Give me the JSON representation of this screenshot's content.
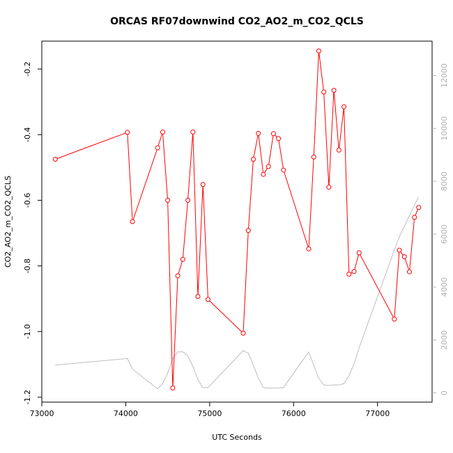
{
  "chart_data": {
    "type": "line",
    "title": "ORCAS RF07downwind CO2_AO2_m_CO2_QCLS",
    "xlabel": "UTC Seconds",
    "ylabel": "CO2_AO2_m_CO2_QCLS",
    "xlim": [
      73000,
      77650
    ],
    "ylim": [
      -1.215,
      -0.115
    ],
    "y2lim": [
      -350,
      13300
    ],
    "x_ticks": [
      73000,
      74000,
      75000,
      76000,
      77000
    ],
    "x_tick_labels": [
      "73000",
      "74000",
      "75000",
      "76000",
      "77000"
    ],
    "y_ticks": [
      -1.2,
      -1.0,
      -0.8,
      -0.6,
      -0.4,
      -0.2
    ],
    "y_tick_labels": [
      "-1.2",
      "-1.0",
      "-0.8",
      "-0.6",
      "-0.4",
      "-0.2"
    ],
    "y2_ticks": [
      0,
      2000,
      4000,
      6000,
      8000,
      10000,
      12000
    ],
    "y2_tick_labels": [
      "0",
      "2000",
      "4000",
      "6000",
      "8000",
      "10000",
      "12000"
    ],
    "series": [
      {
        "color": "#ff0000",
        "style": "line+points",
        "axis": "left",
        "x": [
          73160,
          74020,
          74080,
          74380,
          74440,
          74500,
          74560,
          74620,
          74680,
          74740,
          74800,
          74860,
          74920,
          74980,
          75400,
          75460,
          75520,
          75580,
          75640,
          75700,
          75760,
          75820,
          75880,
          76180,
          76240,
          76300,
          76360,
          76420,
          76480,
          76540,
          76600,
          76660,
          76720,
          76780,
          77200,
          77260,
          77320,
          77380,
          77440,
          77490
        ],
        "y": [
          -0.475,
          -0.393,
          -0.665,
          -0.44,
          -0.392,
          -0.6,
          -1.172,
          -0.83,
          -0.78,
          -0.6,
          -0.392,
          -0.893,
          -0.552,
          -0.902,
          -1.005,
          -0.692,
          -0.475,
          -0.396,
          -0.521,
          -0.497,
          -0.397,
          -0.412,
          -0.508,
          -0.748,
          -0.468,
          -0.145,
          -0.27,
          -0.56,
          -0.265,
          -0.447,
          -0.315,
          -0.825,
          -0.817,
          -0.76,
          -0.962,
          -0.752,
          -0.772,
          -0.818,
          -0.652,
          -0.622
        ]
      },
      {
        "color": "#bebebe",
        "style": "line",
        "axis": "right",
        "x": [
          73160,
          74020,
          74080,
          74380,
          74440,
          74500,
          74560,
          74620,
          74680,
          74740,
          74800,
          74860,
          74920,
          74980,
          75400,
          75460,
          75520,
          75580,
          75640,
          75700,
          75760,
          75820,
          75880,
          76180,
          76240,
          76300,
          76360,
          76420,
          76480,
          76540,
          76600,
          76660,
          76720,
          76780,
          77200,
          77260,
          77320,
          77380,
          77440,
          77490
        ],
        "y": [
          1050,
          1300,
          900,
          150,
          350,
          750,
          1300,
          1550,
          1550,
          1400,
          1000,
          500,
          200,
          200,
          1600,
          1500,
          1050,
          550,
          200,
          180,
          180,
          180,
          200,
          1550,
          1050,
          550,
          300,
          280,
          300,
          300,
          350,
          650,
          1100,
          1700,
          5400,
          5900,
          6300,
          6700,
          7100,
          7400
        ]
      }
    ]
  }
}
